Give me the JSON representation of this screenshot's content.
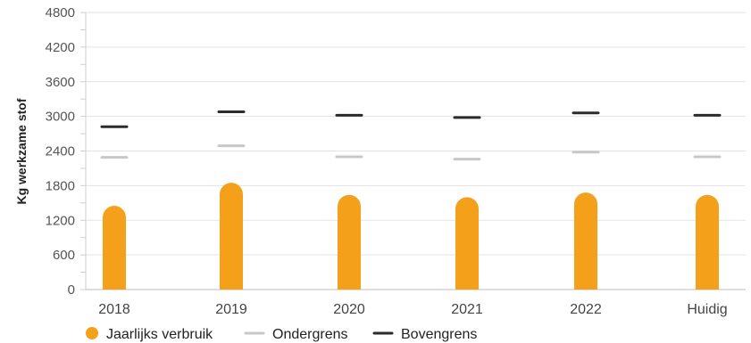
{
  "chart_data": {
    "type": "bar",
    "ylabel": "Kg werkzame stof",
    "ylim": [
      0,
      4800
    ],
    "yticks": [
      0,
      600,
      1200,
      1800,
      2400,
      3000,
      3600,
      4200,
      4800
    ],
    "categories": [
      "2018",
      "2019",
      "2020",
      "2021",
      "2022",
      "Huidig"
    ],
    "series": [
      {
        "name": "Jaarlijks verbruik",
        "kind": "bar",
        "color": "#F5A01A",
        "values": [
          1450,
          1850,
          1640,
          1600,
          1680,
          1640
        ]
      },
      {
        "name": "Ondergrens",
        "kind": "marker",
        "color": "#C8C8C8",
        "values": [
          2290,
          2490,
          2300,
          2260,
          2380,
          2300
        ]
      },
      {
        "name": "Bovengrens",
        "kind": "marker",
        "color": "#2B2B2B",
        "values": [
          2820,
          3080,
          3020,
          2980,
          3060,
          3020
        ]
      }
    ],
    "grid": true,
    "legend_position": "bottom-left"
  }
}
